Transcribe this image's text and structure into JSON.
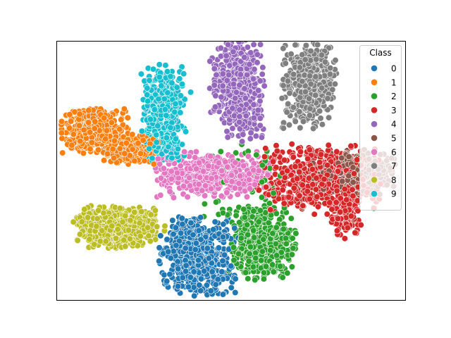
{
  "chart_data": {
    "type": "scatter",
    "title": "",
    "xlabel": "",
    "ylabel": "",
    "axes_ticks": "none",
    "grid": false,
    "legend": {
      "title": "Class",
      "placement": "top-right",
      "entries": [
        "0",
        "1",
        "2",
        "3",
        "4",
        "5",
        "6",
        "7",
        "8",
        "9"
      ]
    },
    "marker": {
      "shape": "circle",
      "edgecolor": "#ffffff"
    },
    "colors": [
      "#1f77b4",
      "#ff7f0e",
      "#2ca02c",
      "#d62728",
      "#9467bd",
      "#8c564b",
      "#e377c2",
      "#7f7f7f",
      "#bcbd22",
      "#17becf"
    ],
    "series": [
      {
        "name": "0",
        "clusters": [
          {
            "center": [
              281,
              365
            ],
            "spread": [
              26,
              26
            ],
            "count": 520
          },
          {
            "center": [
              268,
              330
            ],
            "spread": [
              12,
              12
            ],
            "count": 70
          }
        ]
      },
      {
        "name": "1",
        "clusters": [
          {
            "center": [
              135,
              185
            ],
            "spread": [
              22,
              15
            ],
            "count": 380
          },
          {
            "center": [
              185,
              212
            ],
            "spread": [
              18,
              10
            ],
            "count": 220
          }
        ]
      },
      {
        "name": "2",
        "clusters": [
          {
            "center": [
              372,
              345
            ],
            "spread": [
              22,
              24
            ],
            "count": 480
          },
          {
            "center": [
              355,
              258
            ],
            "spread": [
              35,
              30
            ],
            "count": 60
          }
        ]
      },
      {
        "name": "3",
        "clusters": [
          {
            "center": [
              450,
              255
            ],
            "spread": [
              42,
              24
            ],
            "count": 520
          },
          {
            "center": [
              488,
              305
            ],
            "spread": [
              12,
              16
            ],
            "count": 100
          }
        ]
      },
      {
        "name": "4",
        "clusters": [
          {
            "center": [
              337,
              118
            ],
            "spread": [
              18,
              30
            ],
            "count": 420
          },
          {
            "center": [
              345,
              170
            ],
            "spread": [
              14,
              16
            ],
            "count": 80
          }
        ]
      },
      {
        "name": "5",
        "clusters": [
          {
            "center": [
              505,
              245
            ],
            "spread": [
              28,
              15
            ],
            "count": 300
          }
        ]
      },
      {
        "name": "6",
        "clusters": [
          {
            "center": [
              300,
              248
            ],
            "spread": [
              38,
              15
            ],
            "count": 540
          }
        ]
      },
      {
        "name": "7",
        "clusters": [
          {
            "center": [
              438,
              118
            ],
            "spread": [
              18,
              30
            ],
            "count": 440
          }
        ]
      },
      {
        "name": "8",
        "clusters": [
          {
            "center": [
              170,
              322
            ],
            "spread": [
              30,
              14
            ],
            "count": 520
          }
        ]
      },
      {
        "name": "9",
        "clusters": [
          {
            "center": [
              232,
              160
            ],
            "spread": [
              15,
              32
            ],
            "count": 480
          }
        ]
      }
    ]
  }
}
